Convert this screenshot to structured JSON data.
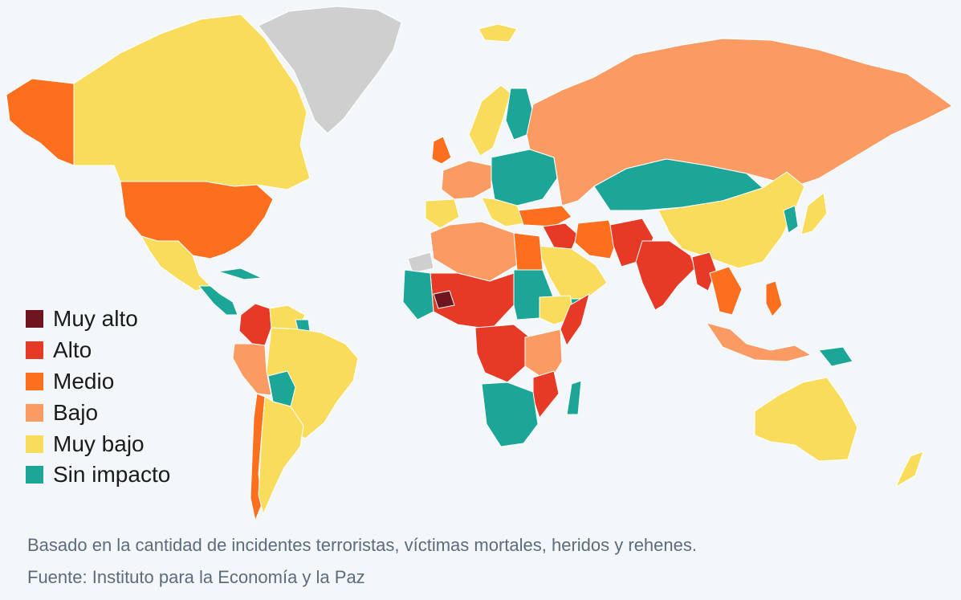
{
  "legend": {
    "items": [
      {
        "label": "Muy alto",
        "color": "#6e1520",
        "level": "muy-alto"
      },
      {
        "label": "Alto",
        "color": "#e63a27",
        "level": "alto"
      },
      {
        "label": "Medio",
        "color": "#fb6f1e",
        "level": "medio"
      },
      {
        "label": "Bajo",
        "color": "#fa9b63",
        "level": "bajo"
      },
      {
        "label": "Muy bajo",
        "color": "#f9dc5c",
        "level": "muy-bajo"
      },
      {
        "label": "Sin impacto",
        "color": "#1ba697",
        "level": "sin-impacto"
      }
    ]
  },
  "no_data_color": "#cfcfcf",
  "ocean_color": "#f4f7f9",
  "footer": {
    "note": "Basado en la cantidad de incidentes terroristas, víctimas mortales, heridos y rehenes.",
    "source": "Fuente: Instituto para la Economía y la Paz"
  }
}
